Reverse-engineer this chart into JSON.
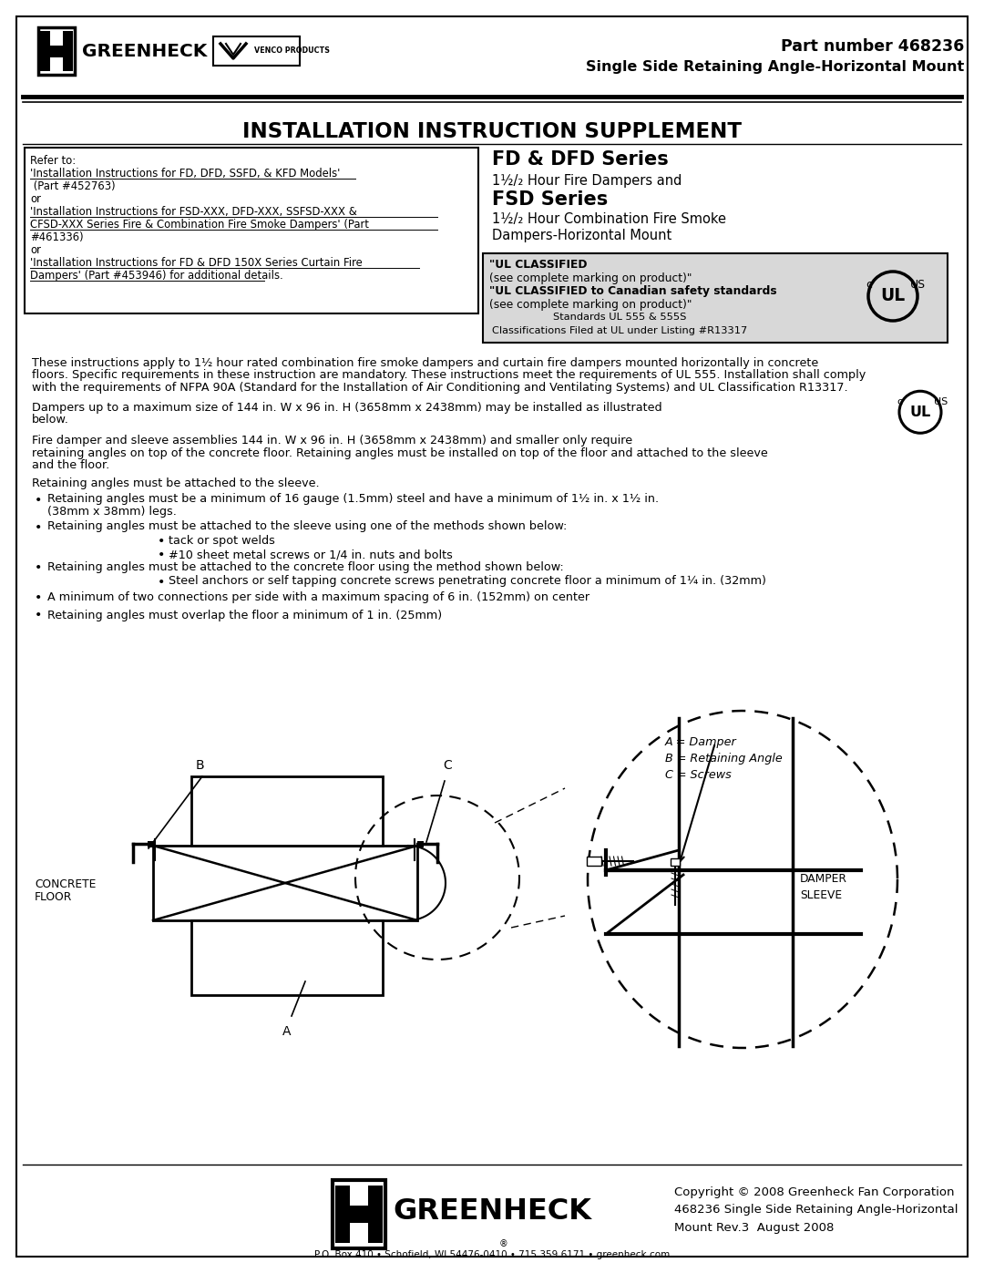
{
  "page_width": 10.8,
  "page_height": 13.97,
  "bg_color": "#ffffff",
  "header": {
    "part_number_line1": "Part number 468236",
    "part_number_line2": "Single Side Retaining Angle-Horizontal Mount",
    "title": "INSTALLATION INSTRUCTION SUPPLEMENT"
  },
  "right_header": {
    "line1": "FD & DFD Series",
    "line2": "1½/2 Hour Fire Dampers and",
    "line3": "FSD Series",
    "line4": "1½/2 Hour Combination Fire Smoke",
    "line5": "Dampers-Horizontal Mount"
  },
  "ul_box": {
    "line1": "\"UL CLASSIFIED",
    "line2": "(see complete marking on product)\"",
    "line3": "\"UL CLASSIFIED to Canadian safety standards",
    "line4": "(see complete marking on product)\"",
    "line5": "Standards UL 555 & 555S",
    "line6": "Classifications Filed at UL under Listing #R13317"
  },
  "footer": {
    "copyright": "Copyright © 2008 Greenheck Fan Corporation\n468236 Single Side Retaining Angle-Horizontal\nMount Rev.3  August 2008",
    "address": "P.O. Box 410 • Schofield, WI 54476-0410 • 715.359.6171 • greenheck.com"
  }
}
